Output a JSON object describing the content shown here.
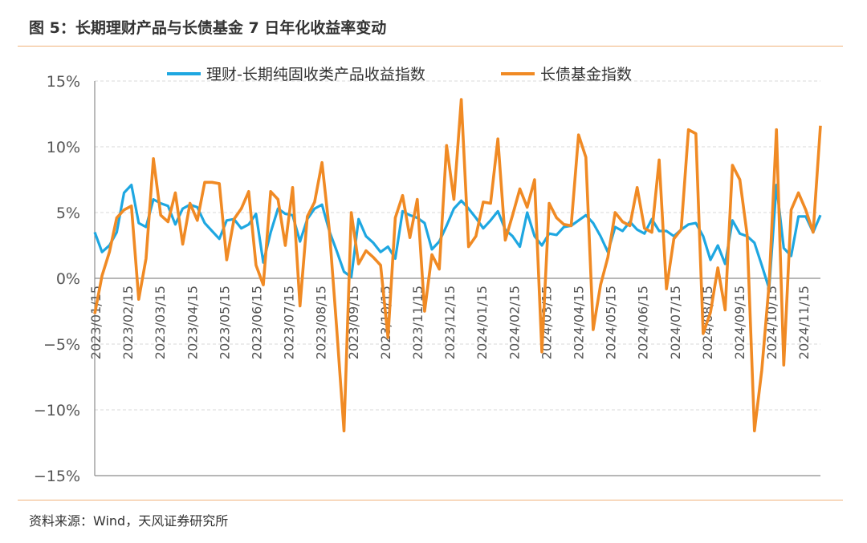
{
  "title": "图 5：长期理财产品与长债基金 7 日年化收益率变动",
  "source": "资料来源：Wind，天风证券研究所",
  "chart_data": {
    "type": "line",
    "title": "图 5：长期理财产品与长债基金 7 日年化收益率变动",
    "xlabel": "",
    "ylabel": "",
    "ylim": [
      -15,
      15
    ],
    "y_ticks": [
      -15,
      -10,
      -5,
      0,
      5,
      10,
      15
    ],
    "y_tick_labels": [
      "−15%",
      "−10%",
      "−5%",
      "0%",
      "5%",
      "10%",
      "15%"
    ],
    "x_ticks": [
      "2023/01/15",
      "2023/02/15",
      "2023/03/15",
      "2023/04/15",
      "2023/05/15",
      "2023/06/15",
      "2023/07/15",
      "2023/08/15",
      "2023/09/15",
      "2023/10/15",
      "2023/11/15",
      "2023/12/15",
      "2024/01/15",
      "2024/02/15",
      "2024/03/15",
      "2024/04/15",
      "2024/05/15",
      "2024/06/15",
      "2024/07/15",
      "2024/08/15",
      "2024/09/15",
      "2024/10/15",
      "2024/11/15"
    ],
    "grid": true,
    "legend": "top",
    "series": [
      {
        "name": "理财-长期纯固收类产品收益指数",
        "color": "#1ea7e1",
        "values": [
          3.5,
          2.0,
          2.5,
          3.5,
          6.5,
          7.1,
          4.2,
          3.9,
          6.0,
          5.7,
          5.5,
          4.1,
          5.3,
          5.6,
          5.4,
          4.2,
          3.6,
          3.0,
          4.4,
          4.5,
          3.8,
          4.1,
          4.9,
          1.2,
          3.5,
          5.3,
          4.9,
          4.8,
          2.8,
          4.5,
          5.3,
          5.6,
          3.6,
          2.1,
          0.5,
          0.1,
          4.5,
          3.2,
          2.7,
          2.0,
          2.4,
          1.5,
          5.1,
          4.8,
          4.6,
          4.2,
          2.2,
          2.8,
          4.0,
          5.3,
          5.9,
          5.3,
          4.6,
          3.8,
          4.4,
          5.1,
          3.7,
          3.2,
          2.4,
          5.0,
          3.2,
          2.5,
          3.4,
          3.3,
          3.9,
          4.0,
          4.4,
          4.8,
          4.2,
          3.2,
          2.0,
          3.9,
          3.6,
          4.3,
          3.7,
          3.4,
          4.5,
          3.6,
          3.6,
          3.2,
          3.7,
          4.1,
          4.2,
          3.2,
          1.4,
          2.5,
          1.1,
          4.4,
          3.4,
          3.2,
          2.7,
          1.0,
          -0.8,
          7.1,
          2.3,
          1.7,
          4.7,
          4.7,
          3.5,
          4.8
        ]
      },
      {
        "name": "长债基金指数",
        "color": "#f08a24",
        "values": [
          -2.7,
          0.2,
          2.0,
          4.6,
          5.2,
          5.5,
          -1.6,
          1.5,
          9.1,
          4.8,
          4.3,
          6.5,
          2.6,
          5.7,
          4.4,
          7.3,
          7.3,
          7.2,
          1.4,
          4.5,
          5.3,
          6.6,
          1.0,
          -0.5,
          6.6,
          6.0,
          2.5,
          6.9,
          -2.1,
          4.7,
          5.8,
          8.8,
          3.7,
          -3.7,
          -11.6,
          5.0,
          1.1,
          2.1,
          1.6,
          1.0,
          -4.5,
          4.6,
          6.3,
          3.1,
          6.0,
          -2.5,
          1.8,
          0.7,
          10.1,
          6.0,
          13.6,
          2.4,
          3.2,
          5.8,
          5.7,
          10.6,
          2.9,
          4.8,
          6.8,
          5.4,
          7.5,
          -5.6,
          5.7,
          4.6,
          4.1,
          4.0,
          10.9,
          9.2,
          -3.9,
          -0.5,
          1.6,
          5.0,
          4.3,
          4.0,
          6.9,
          3.8,
          3.5,
          9.0,
          -0.8,
          3.0,
          3.7,
          11.3,
          11.0,
          -4.2,
          -2.6,
          0.8,
          -2.4,
          8.6,
          7.5,
          3.3,
          -11.6,
          -7.0,
          -0.4,
          11.3,
          -6.6,
          5.2,
          6.5,
          5.2,
          3.5,
          11.6
        ]
      }
    ]
  }
}
